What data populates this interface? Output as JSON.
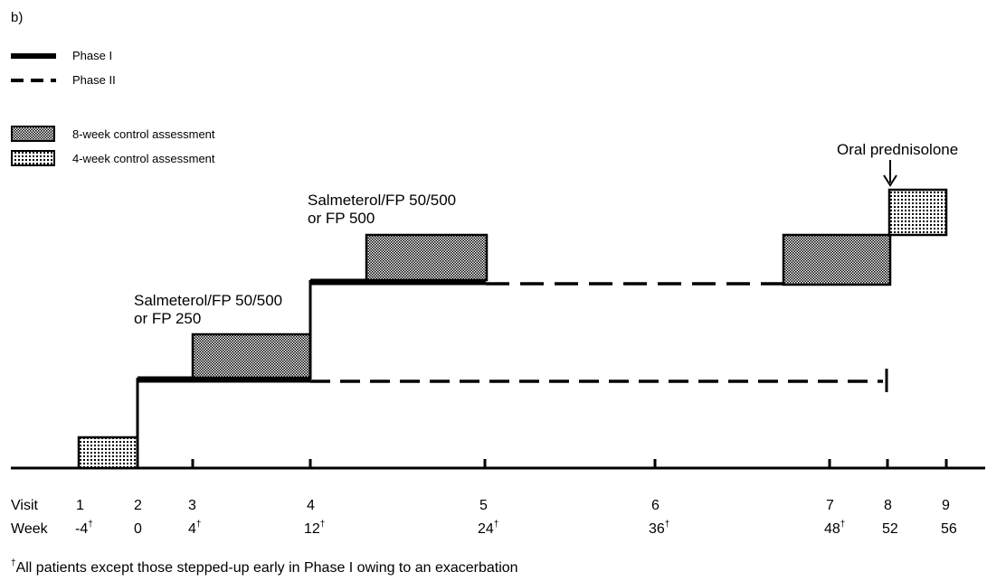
{
  "panel_label": "b)",
  "legend": {
    "phase1": "Phase I",
    "phase2": "Phase II",
    "assess8": "8-week control assessment",
    "assess4": "4-week control assessment"
  },
  "labels": {
    "step1_line1": "Salmeterol/FP 50/500",
    "step1_line2": "or FP 250",
    "step2_line1": "Salmeterol/FP 50/500",
    "step2_line2": "or FP 500",
    "rescue": "Oral prednisolone"
  },
  "axis": {
    "visit_label": "Visit",
    "week_label": "Week",
    "visits": [
      "1",
      "2",
      "3",
      "4",
      "5",
      "6",
      "7",
      "8",
      "9"
    ],
    "weeks": [
      {
        "value": "-4",
        "dagger": "†"
      },
      {
        "value": "0",
        "dagger": ""
      },
      {
        "value": "4",
        "dagger": "†"
      },
      {
        "value": "12",
        "dagger": "†"
      },
      {
        "value": "24",
        "dagger": "†"
      },
      {
        "value": "36",
        "dagger": "†"
      },
      {
        "value": "48",
        "dagger": "†"
      },
      {
        "value": "52",
        "dagger": ""
      },
      {
        "value": "56",
        "dagger": ""
      }
    ]
  },
  "footnote": {
    "dagger": "†",
    "text": "All patients except those stepped-up early in Phase I owing to an exacerbation"
  },
  "colors": {
    "ink": "#000000",
    "fill": "#ffffff"
  }
}
